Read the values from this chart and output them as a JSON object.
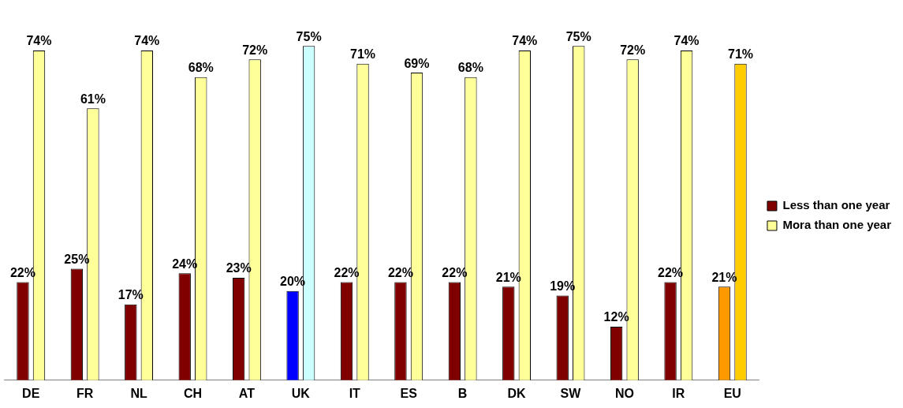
{
  "chart_data": {
    "type": "bar",
    "categories": [
      "DE",
      "FR",
      "NL",
      "CH",
      "AT",
      "UK",
      "IT",
      "ES",
      "B",
      "DK",
      "SW",
      "NO",
      "IR",
      "EU"
    ],
    "series": [
      {
        "name": "Less than one year",
        "color": "#800000",
        "colors": [
          "#800000",
          "#800000",
          "#800000",
          "#800000",
          "#800000",
          "#0000ff",
          "#800000",
          "#800000",
          "#800000",
          "#800000",
          "#800000",
          "#800000",
          "#800000",
          "#ff9900"
        ],
        "values": [
          22,
          25,
          17,
          24,
          23,
          20,
          22,
          22,
          22,
          21,
          19,
          12,
          22,
          21
        ],
        "value_labels": [
          "22%",
          "25%",
          "17%",
          "24%",
          "23%",
          "20%",
          "22%",
          "22%",
          "22%",
          "21%",
          "19%",
          "12%",
          "22%",
          "21%"
        ]
      },
      {
        "name": "Mora than one year",
        "color": "#ffff99",
        "colors": [
          "#ffff99",
          "#ffff99",
          "#ffff99",
          "#ffff99",
          "#ffff99",
          "#ccffff",
          "#ffff99",
          "#ffff99",
          "#ffff99",
          "#ffff99",
          "#ffff99",
          "#ffff99",
          "#ffff99",
          "#ffcc00"
        ],
        "values": [
          74,
          61,
          74,
          68,
          72,
          75,
          71,
          69,
          68,
          74,
          75,
          72,
          74,
          71
        ],
        "value_labels": [
          "74%",
          "61%",
          "74%",
          "68%",
          "72%",
          "75%",
          "71%",
          "69%",
          "68%",
          "74%",
          "75%",
          "72%",
          "74%",
          "71%"
        ]
      }
    ],
    "legend": "right",
    "grid": false
  }
}
